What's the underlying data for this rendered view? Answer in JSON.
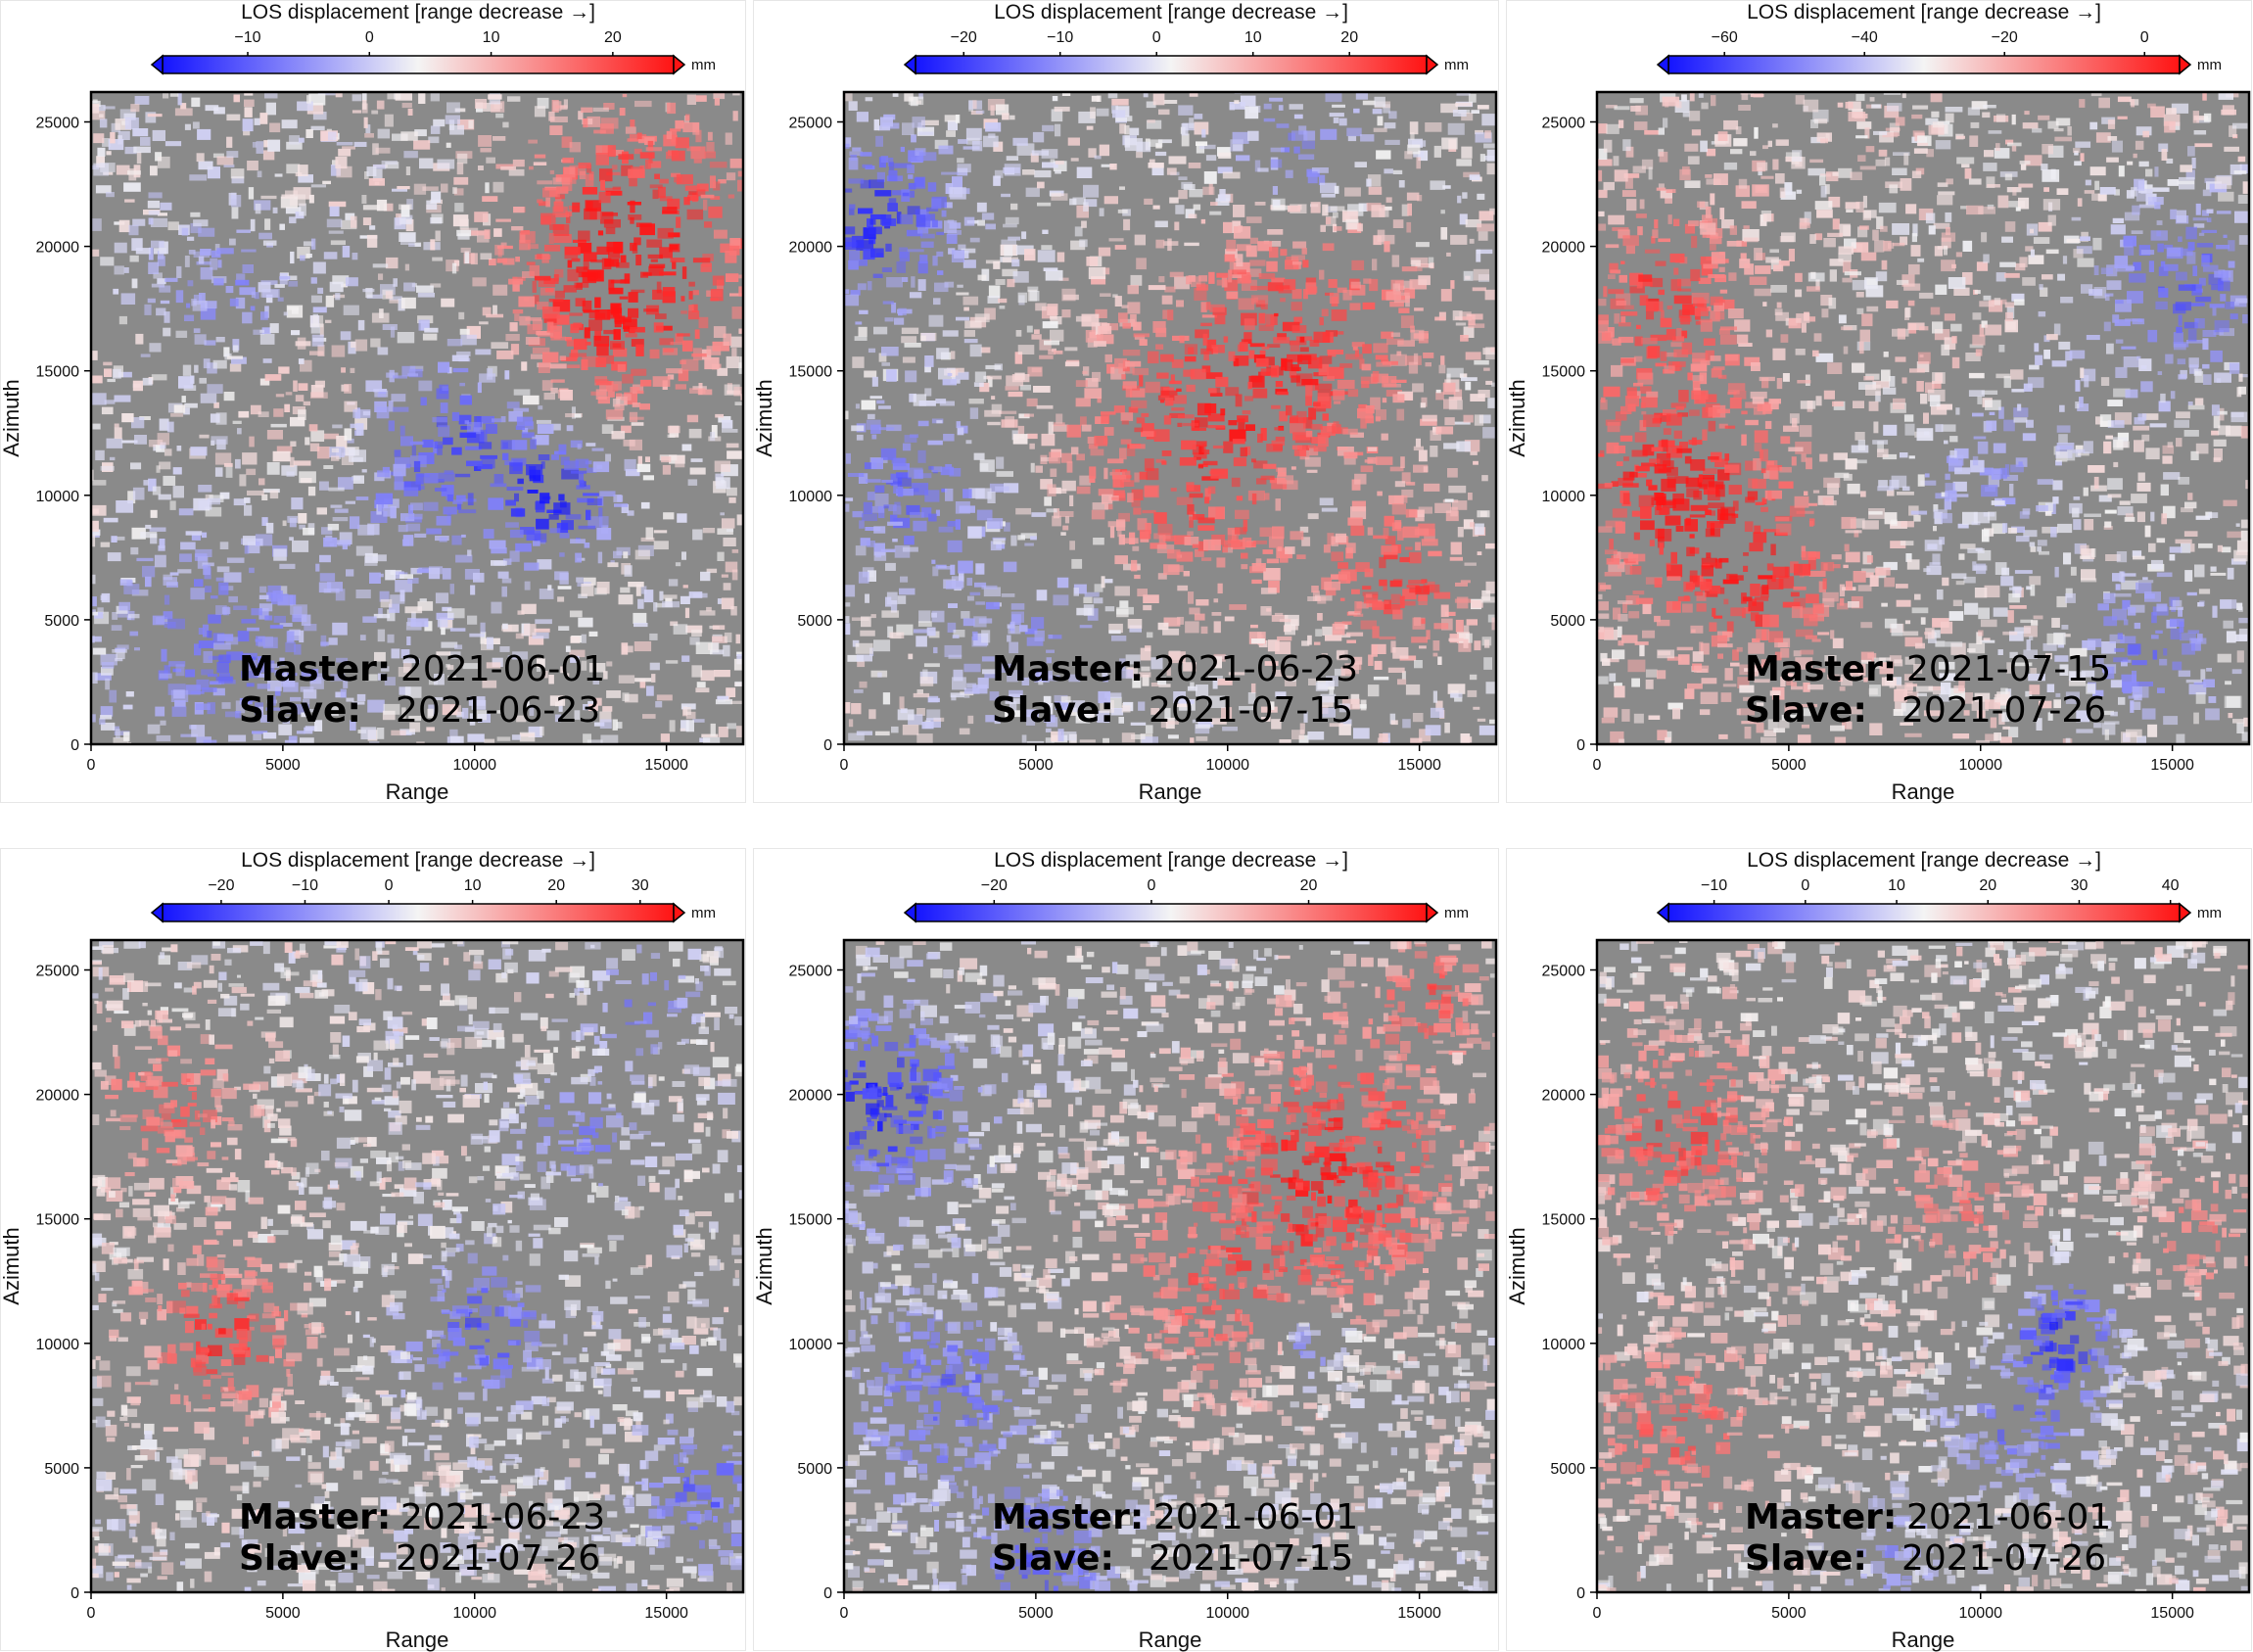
{
  "colors": {
    "negative": "#1414ff",
    "neutral": "#f4f4f4",
    "positive": "#ff1414",
    "background_gray": "#8a8a8a",
    "frame": "#000000"
  },
  "chart_data": [
    {
      "type": "heatmap",
      "colorbar_title": "LOS displacement [range decrease →]",
      "colorbar_unit": "mm",
      "colorbar_range": [
        -17,
        25
      ],
      "colorbar_ticks": [
        -10,
        0,
        10,
        20
      ],
      "xlabel": "Range",
      "ylabel": "Azimuth",
      "xlim": [
        0,
        17000
      ],
      "ylim": [
        0,
        26200
      ],
      "xticks": [
        0,
        5000,
        10000,
        15000
      ],
      "yticks": [
        0,
        5000,
        10000,
        15000,
        20000,
        25000
      ],
      "annotations": {
        "master_label": "Master",
        "master_date": "2021-06-01",
        "slave_label": "Slave",
        "slave_date": "2021-06-23"
      },
      "pattern": {
        "bias": 0,
        "blobs": [
          [
            0.85,
            0.2,
            0.18,
            0.9
          ],
          [
            0.78,
            0.35,
            0.15,
            0.7
          ],
          [
            0.55,
            0.55,
            0.16,
            -0.75
          ],
          [
            0.72,
            0.62,
            0.08,
            -0.9
          ],
          [
            0.2,
            0.85,
            0.18,
            -0.5
          ],
          [
            0.2,
            0.3,
            0.12,
            -0.4
          ],
          [
            0.35,
            0.5,
            0.12,
            0.3
          ]
        ]
      }
    },
    {
      "type": "heatmap",
      "colorbar_title": "LOS displacement [range decrease →]",
      "colorbar_unit": "mm",
      "colorbar_range": [
        -25,
        28
      ],
      "colorbar_ticks": [
        -20,
        -10,
        0,
        10,
        20
      ],
      "xlabel": "Range",
      "ylabel": "Azimuth",
      "xlim": [
        0,
        17000
      ],
      "ylim": [
        0,
        26200
      ],
      "xticks": [
        0,
        5000,
        10000,
        15000
      ],
      "yticks": [
        0,
        5000,
        10000,
        15000,
        20000,
        25000
      ],
      "annotations": {
        "master_label": "Master",
        "master_date": "2021-06-23",
        "slave_label": "Slave",
        "slave_date": "2021-07-15"
      },
      "pattern": {
        "bias": 0,
        "blobs": [
          [
            0.55,
            0.55,
            0.22,
            0.85
          ],
          [
            0.72,
            0.35,
            0.18,
            0.6
          ],
          [
            0.05,
            0.2,
            0.12,
            -0.9
          ],
          [
            0.1,
            0.6,
            0.12,
            -0.6
          ],
          [
            0.7,
            0.1,
            0.1,
            -0.5
          ],
          [
            0.85,
            0.75,
            0.1,
            0.8
          ],
          [
            0.72,
            0.62,
            0.05,
            -0.7
          ],
          [
            0.3,
            0.8,
            0.15,
            -0.4
          ]
        ]
      }
    },
    {
      "type": "heatmap",
      "colorbar_title": "LOS displacement [range decrease →]",
      "colorbar_unit": "mm",
      "colorbar_range": [
        -68,
        5
      ],
      "colorbar_ticks": [
        -60,
        -40,
        -20,
        0
      ],
      "xlabel": "Range",
      "ylabel": "Azimuth",
      "xlim": [
        0,
        17000
      ],
      "ylim": [
        0,
        26200
      ],
      "xticks": [
        0,
        5000,
        10000,
        15000
      ],
      "yticks": [
        0,
        5000,
        10000,
        15000,
        20000,
        25000
      ],
      "annotations": {
        "master_label": "Master",
        "master_date": "2021-07-15",
        "slave_label": "Slave",
        "slave_date": "2021-07-26"
      },
      "pattern": {
        "bias": 0.1,
        "blobs": [
          [
            0.12,
            0.6,
            0.16,
            0.9
          ],
          [
            0.25,
            0.75,
            0.12,
            0.7
          ],
          [
            0.1,
            0.3,
            0.12,
            0.7
          ],
          [
            0.6,
            0.55,
            0.14,
            -0.5
          ],
          [
            0.9,
            0.3,
            0.15,
            -0.7
          ],
          [
            0.85,
            0.85,
            0.12,
            -0.6
          ],
          [
            0.55,
            0.45,
            0.1,
            0.3
          ]
        ]
      }
    },
    {
      "type": "heatmap",
      "colorbar_title": "LOS displacement [range decrease →]",
      "colorbar_unit": "mm",
      "colorbar_range": [
        -27,
        34
      ],
      "colorbar_ticks": [
        -20,
        -10,
        0,
        10,
        20,
        30
      ],
      "xlabel": "Range",
      "ylabel": "Azimuth",
      "xlim": [
        0,
        17000
      ],
      "ylim": [
        0,
        26200
      ],
      "xticks": [
        0,
        5000,
        10000,
        15000
      ],
      "yticks": [
        0,
        5000,
        10000,
        15000,
        20000,
        25000
      ],
      "annotations": {
        "master_label": "Master",
        "master_date": "2021-06-23",
        "slave_label": "Slave",
        "slave_date": "2021-07-26"
      },
      "pattern": {
        "bias": 0,
        "blobs": [
          [
            0.2,
            0.6,
            0.12,
            0.85
          ],
          [
            0.12,
            0.25,
            0.12,
            0.6
          ],
          [
            0.6,
            0.6,
            0.1,
            -0.7
          ],
          [
            0.75,
            0.3,
            0.08,
            -0.5
          ],
          [
            0.95,
            0.85,
            0.1,
            -0.6
          ],
          [
            0.85,
            0.1,
            0.08,
            -0.5
          ]
        ]
      }
    },
    {
      "type": "heatmap",
      "colorbar_title": "LOS displacement [range decrease →]",
      "colorbar_unit": "mm",
      "colorbar_range": [
        -30,
        35
      ],
      "colorbar_ticks": [
        -20,
        0,
        20
      ],
      "xlabel": "Range",
      "ylabel": "Azimuth",
      "xlim": [
        0,
        17000
      ],
      "ylim": [
        0,
        26200
      ],
      "xticks": [
        0,
        5000,
        10000,
        15000
      ],
      "yticks": [
        0,
        5000,
        10000,
        15000,
        20000,
        25000
      ],
      "annotations": {
        "master_label": "Master",
        "master_date": "2021-06-01",
        "slave_label": "Slave",
        "slave_date": "2021-07-15"
      },
      "pattern": {
        "bias": 0,
        "blobs": [
          [
            0.75,
            0.35,
            0.2,
            0.9
          ],
          [
            0.55,
            0.55,
            0.15,
            0.5
          ],
          [
            0.05,
            0.25,
            0.14,
            -0.9
          ],
          [
            0.15,
            0.7,
            0.14,
            -0.6
          ],
          [
            0.3,
            0.95,
            0.1,
            -0.7
          ],
          [
            0.72,
            0.62,
            0.05,
            -0.7
          ],
          [
            0.9,
            0.08,
            0.08,
            0.6
          ]
        ]
      }
    },
    {
      "type": "heatmap",
      "colorbar_title": "LOS displacement [range decrease →]",
      "colorbar_unit": "mm",
      "colorbar_range": [
        -15,
        41
      ],
      "colorbar_ticks": [
        -10,
        0,
        10,
        20,
        30,
        40
      ],
      "xlabel": "Range",
      "ylabel": "Azimuth",
      "xlim": [
        0,
        17000
      ],
      "ylim": [
        0,
        26200
      ],
      "xticks": [
        0,
        5000,
        10000,
        15000
      ],
      "yticks": [
        0,
        5000,
        10000,
        15000,
        20000,
        25000
      ],
      "annotations": {
        "master_label": "Master",
        "master_date": "2021-06-01",
        "slave_label": "Slave",
        "slave_date": "2021-07-26"
      },
      "pattern": {
        "bias": 0.05,
        "blobs": [
          [
            0.72,
            0.6,
            0.08,
            -0.95
          ],
          [
            0.65,
            0.75,
            0.1,
            -0.6
          ],
          [
            0.12,
            0.3,
            0.14,
            0.7
          ],
          [
            0.12,
            0.75,
            0.12,
            0.6
          ],
          [
            0.55,
            0.4,
            0.12,
            0.4
          ],
          [
            0.92,
            0.45,
            0.1,
            0.4
          ],
          [
            0.45,
            0.95,
            0.08,
            -0.4
          ]
        ]
      }
    }
  ]
}
